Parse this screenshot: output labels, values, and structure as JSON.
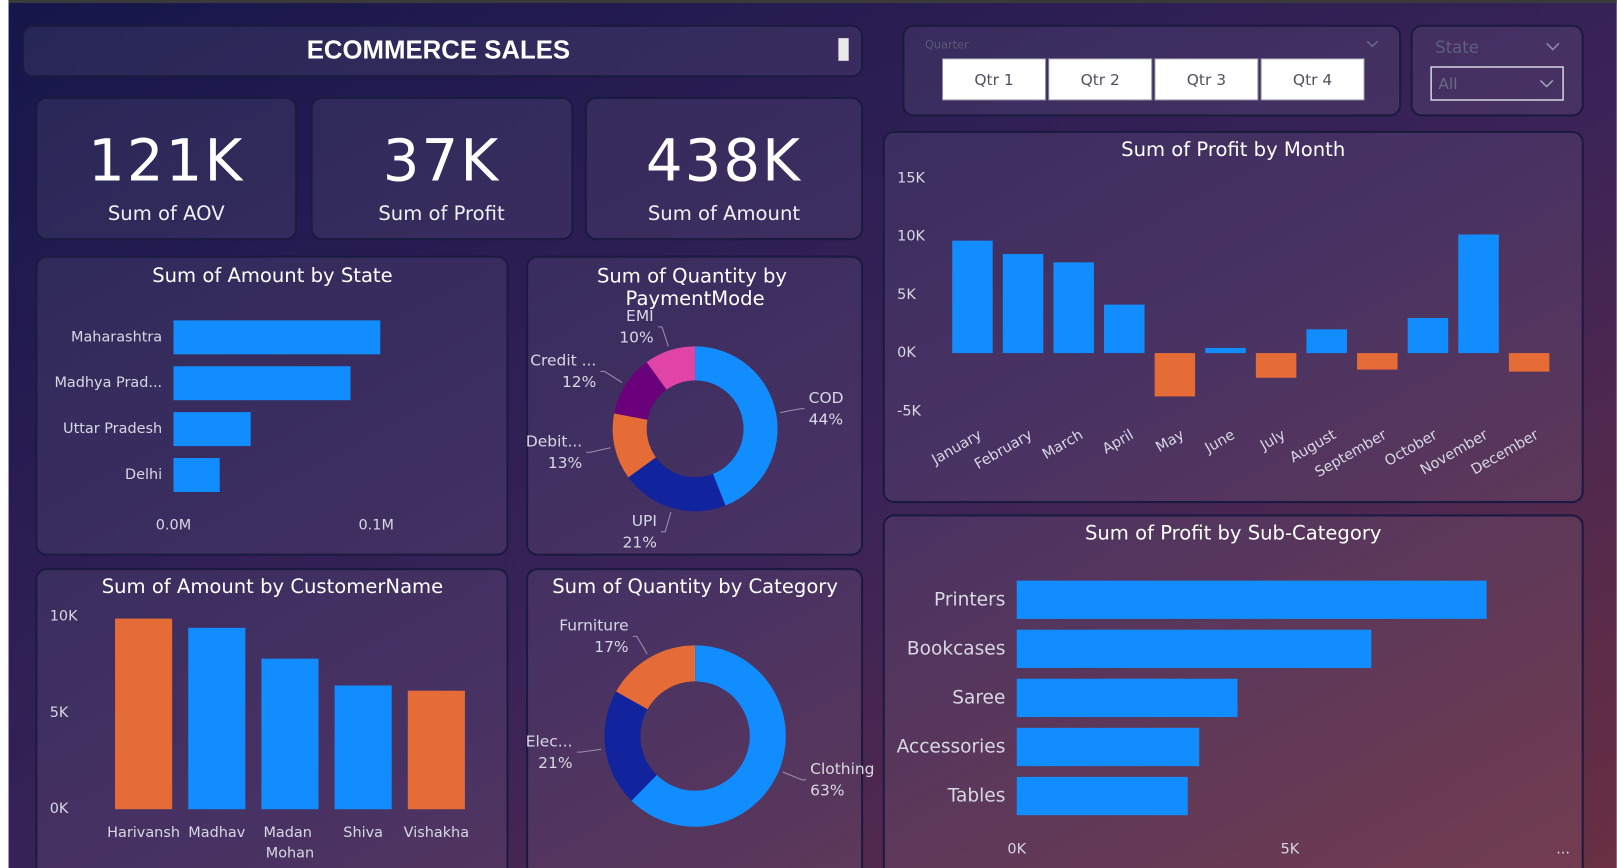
{
  "header": {
    "title": "ECOMMERCE SALES"
  },
  "kpis": [
    {
      "value": "121K",
      "label": "Sum of AOV"
    },
    {
      "value": "37K",
      "label": "Sum of Profit"
    },
    {
      "value": "438K",
      "label": "Sum of Amount"
    }
  ],
  "slicers": {
    "quarter": {
      "title": "Quarter",
      "options": [
        "Qtr 1",
        "Qtr 2",
        "Qtr 3",
        "Qtr 4"
      ]
    },
    "state": {
      "title": "State",
      "selected": "All"
    }
  },
  "chart_data": [
    {
      "type": "bar",
      "horizontal": true,
      "title": "Sum of Amount by State",
      "categories": [
        "Maharashtra",
        "Madhya Prad...",
        "Uttar Pradesh",
        "Delhi"
      ],
      "values": [
        102000,
        87300,
        38100,
        22800
      ],
      "color": "#118dff",
      "xlim": [
        0,
        150000
      ],
      "xticks": [
        {
          "value": 0,
          "label": "0.0M"
        },
        {
          "value": 100000,
          "label": "0.1M"
        }
      ]
    },
    {
      "type": "pie",
      "donut": true,
      "title": "Sum of Quantity by PaymentMode",
      "categories": [
        "COD",
        "UPI",
        "Debit...",
        "Credit ...",
        "EMI"
      ],
      "values": [
        44,
        21,
        13,
        12,
        10
      ],
      "value_labels": [
        "44%",
        "21%",
        "13%",
        "12%",
        "10%"
      ],
      "colors": [
        "#118dff",
        "#12239e",
        "#e66c37",
        "#6b007b",
        "#e044a7"
      ]
    },
    {
      "type": "bar",
      "title": "Sum of Profit by Month",
      "categories": [
        "January",
        "February",
        "March",
        "April",
        "May",
        "June",
        "July",
        "August",
        "September",
        "October",
        "November",
        "December"
      ],
      "values": [
        9650,
        8500,
        7790,
        4160,
        -3720,
        440,
        -2120,
        2040,
        -1420,
        3010,
        10180,
        -1590
      ],
      "color": "#118dff",
      "negative_color": "#e66c37",
      "ylim": [
        -5000,
        15000
      ],
      "yticks": [
        {
          "value": 15000,
          "label": "15K"
        },
        {
          "value": 10000,
          "label": "10K"
        },
        {
          "value": 5000,
          "label": "5K"
        },
        {
          "value": 0,
          "label": "0K"
        },
        {
          "value": -5000,
          "label": "-5K"
        }
      ]
    },
    {
      "type": "bar",
      "title": "Sum of Amount by CustomerName",
      "categories": [
        "Harivansh",
        "Madhav",
        "Madan Mohan",
        "Shiva",
        "Vishakha"
      ],
      "values": [
        9890,
        9410,
        7810,
        6420,
        6150
      ],
      "colors": [
        "#e66c37",
        "#118dff",
        "#118dff",
        "#118dff",
        "#e66c37"
      ],
      "ylim": [
        0,
        10000
      ],
      "yticks": [
        {
          "value": 10000,
          "label": "10K"
        },
        {
          "value": 5000,
          "label": "5K"
        },
        {
          "value": 0,
          "label": "0K"
        }
      ]
    },
    {
      "type": "pie",
      "donut": true,
      "title": "Sum of Quantity by Category",
      "categories": [
        "Clothing",
        "Elec...",
        "Furniture"
      ],
      "values": [
        63,
        21,
        17
      ],
      "value_labels": [
        "63%",
        "21%",
        "17%"
      ],
      "colors": [
        "#118dff",
        "#12239e",
        "#e66c37"
      ]
    },
    {
      "type": "bar",
      "horizontal": true,
      "title": "Sum of Profit by Sub-Category",
      "categories": [
        "Printers",
        "Bookcases",
        "Saree",
        "Accessories",
        "Tables"
      ],
      "values": [
        8600,
        6490,
        4040,
        3340,
        3130
      ],
      "color": "#118dff",
      "xlim": [
        0,
        10000
      ],
      "xticks": [
        {
          "value": 0,
          "label": "0K"
        },
        {
          "value": 5000,
          "label": "5K"
        },
        {
          "value": 10000,
          "label": "..."
        }
      ]
    }
  ]
}
